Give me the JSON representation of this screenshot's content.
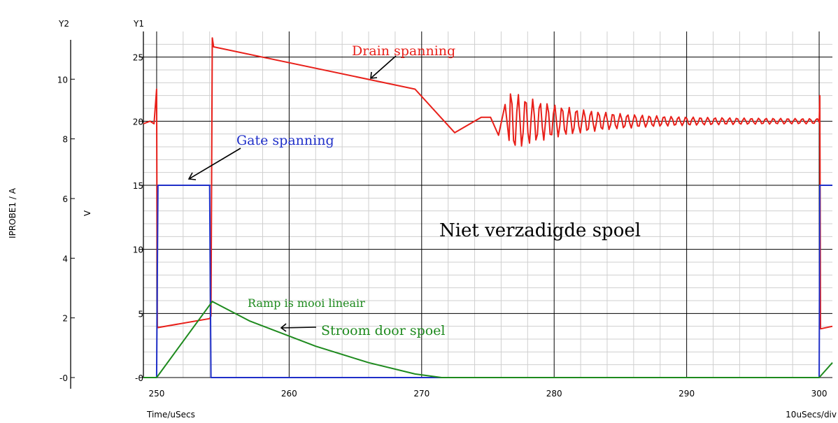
{
  "chart_data": {
    "type": "line",
    "title": "Niet verzadigde spoel",
    "xlabel": "Time/uSecs",
    "x_div_label": "10uSecs/div",
    "xlim": [
      249,
      301
    ],
    "x_ticks": [
      "250",
      "260",
      "270",
      "280",
      "290",
      "300"
    ],
    "y1": {
      "axis_label": "Y1",
      "unit_label": "V",
      "ylim": [
        0,
        27
      ],
      "ticks": [
        "-0",
        "5",
        "10",
        "15",
        "20",
        "25"
      ]
    },
    "y2": {
      "axis_label": "Y2",
      "unit_label": "IPROBE1 / A",
      "ylim": [
        0,
        11.6
      ],
      "ticks": [
        "-0",
        "2",
        "4",
        "6",
        "8",
        "10"
      ]
    },
    "grid": true,
    "series": [
      {
        "name": "Drain spanning",
        "axis": "y1",
        "color": "#e8201a",
        "points": [
          [
            249,
            19.8
          ],
          [
            249.5,
            20
          ],
          [
            249.8,
            19.8
          ],
          [
            250,
            22.5
          ],
          [
            250.05,
            4
          ],
          [
            250.1,
            3.9
          ],
          [
            254,
            4.6
          ],
          [
            254.1,
            4.8
          ],
          [
            254.2,
            26.5
          ],
          [
            254.3,
            25.8
          ],
          [
            269.5,
            22.5
          ],
          [
            272.5,
            19.1
          ],
          [
            274.5,
            20.3
          ],
          [
            275.2,
            20.3
          ],
          [
            275.8,
            18.9
          ],
          [
            276.3,
            21.3
          ],
          [
            276.6,
            18.5
          ],
          [
            279,
            20.8
          ],
          [
            283,
            20.3
          ],
          [
            290,
            20
          ],
          [
            300,
            19.9
          ],
          [
            300.05,
            22
          ],
          [
            300.1,
            3.8
          ],
          [
            301,
            4
          ]
        ]
      },
      {
        "name": "Gate spanning",
        "axis": "y1",
        "color": "#1f2fc8",
        "points": [
          [
            249,
            0
          ],
          [
            250,
            0
          ],
          [
            250.1,
            15
          ],
          [
            254,
            15
          ],
          [
            254.1,
            0
          ],
          [
            300,
            0
          ],
          [
            300.05,
            15
          ],
          [
            301,
            15
          ]
        ]
      },
      {
        "name": "Stroom door spoel",
        "axis": "y2",
        "color": "#1e8a1e",
        "points": [
          [
            249,
            0
          ],
          [
            250,
            0
          ],
          [
            254.2,
            2.55
          ],
          [
            257,
            1.9
          ],
          [
            262,
            1.05
          ],
          [
            266,
            0.5
          ],
          [
            269.5,
            0.12
          ],
          [
            271.5,
            0
          ],
          [
            300,
            0
          ],
          [
            301,
            0.5
          ]
        ]
      }
    ],
    "annotations": [
      {
        "text": "Drain spanning",
        "color": "#e8201a"
      },
      {
        "text": "Gate spanning",
        "color": "#1f2fc8"
      },
      {
        "text": "Ramp is mooi lineair",
        "color": "#1e8a1e"
      },
      {
        "text": "Stroom door spoel",
        "color": "#1e8a1e"
      }
    ]
  }
}
